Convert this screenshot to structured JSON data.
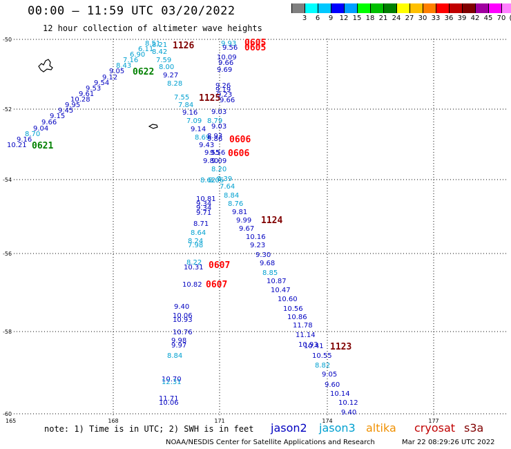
{
  "title": "00:00 – 11:59 UTC 03/20/2022",
  "subtitle": "12 hour collection of altimeter wave heights",
  "legend": {
    "colors": [
      "#808080",
      "#00ffff",
      "#00c8ff",
      "#0000ff",
      "#00a0ff",
      "#00ff00",
      "#00c000",
      "#008000",
      "#ffff00",
      "#ffc000",
      "#ff8000",
      "#ff0000",
      "#c00000",
      "#800000",
      "#a000a0",
      "#ff00ff",
      "#ff80ff",
      "#000000"
    ],
    "labels": [
      "3",
      "6",
      "9",
      "12",
      "15",
      "18",
      "21",
      "24",
      "27",
      "30",
      "33",
      "36",
      "39",
      "42",
      "45",
      "70",
      "(ft)"
    ]
  },
  "axes": {
    "lon_ticks": [
      "165",
      "168",
      "171",
      "174",
      "177"
    ],
    "lat_ticks": [
      "-50",
      "-52",
      "-54",
      "-56",
      "-58",
      "-60"
    ]
  },
  "colors": {
    "jason2": "#0000c0",
    "jason3": "#00a0d0",
    "altika": "#f09000",
    "cryosat": "#c00000",
    "s3a": "#800000",
    "green_time": "#008000",
    "red_time": "#ff0000",
    "dark_red_time": "#800000"
  },
  "measurements": [
    {
      "text": "10.21",
      "c": "jason2"
    },
    {
      "text": "9.16",
      "c": "jason2"
    },
    {
      "text": "8.70",
      "c": "jason3"
    },
    {
      "text": "9.04",
      "c": "jason2"
    },
    {
      "text": "9.66",
      "c": "jason2"
    },
    {
      "text": "9.15",
      "c": "jason2"
    },
    {
      "text": "9.45",
      "c": "jason2"
    },
    {
      "text": "9.95",
      "c": "jason2"
    },
    {
      "text": "10.28",
      "c": "jason2"
    },
    {
      "text": "9.61",
      "c": "jason2"
    },
    {
      "text": "9.53",
      "c": "jason2"
    },
    {
      "text": "9.54",
      "c": "jason2"
    },
    {
      "text": "9.12",
      "c": "jason2"
    },
    {
      "text": "9.05",
      "c": "jason2"
    },
    {
      "text": "8.43",
      "c": "jason3"
    },
    {
      "text": "7.16",
      "c": "jason3"
    },
    {
      "text": "6.90",
      "c": "jason3"
    },
    {
      "text": "6.11",
      "c": "jason3"
    },
    {
      "text": "8.51",
      "c": "jason3"
    },
    {
      "text": "8.21",
      "c": "jason3"
    },
    {
      "text": "8.42",
      "c": "jason3"
    },
    {
      "text": "7.59",
      "c": "jason3"
    },
    {
      "text": "8.00",
      "c": "jason3"
    },
    {
      "text": "9.27",
      "c": "jason2"
    },
    {
      "text": "8.28",
      "c": "jason3"
    },
    {
      "text": "7.55",
      "c": "jason3"
    },
    {
      "text": "7.84",
      "c": "jason3"
    },
    {
      "text": "9.16",
      "c": "jason2"
    },
    {
      "text": "7.09",
      "c": "jason3"
    },
    {
      "text": "9.14",
      "c": "jason2"
    },
    {
      "text": "8.69",
      "c": "jason3"
    },
    {
      "text": "9.43",
      "c": "jason2"
    },
    {
      "text": "9.86",
      "c": "jason2"
    },
    {
      "text": "9.55",
      "c": "jason2"
    },
    {
      "text": "9.56",
      "c": "jason2"
    },
    {
      "text": "9.80",
      "c": "jason2"
    },
    {
      "text": "9.09",
      "c": "jason2"
    },
    {
      "text": "8.20",
      "c": "jason3"
    },
    {
      "text": "8.39",
      "c": "jason3"
    },
    {
      "text": "8.06",
      "c": "jason3"
    },
    {
      "text": "8.62",
      "c": "jason3"
    },
    {
      "text": "9.93",
      "c": "jason3"
    },
    {
      "text": "9.56",
      "c": "jason2"
    },
    {
      "text": "10.09",
      "c": "jason2"
    },
    {
      "text": "9.66",
      "c": "jason2"
    },
    {
      "text": "9.69",
      "c": "jason2"
    },
    {
      "text": "9.26",
      "c": "jason2"
    },
    {
      "text": "9.19",
      "c": "jason2"
    },
    {
      "text": "9.23",
      "c": "jason2"
    },
    {
      "text": "9.66",
      "c": "jason2"
    },
    {
      "text": "9.03",
      "c": "jason2"
    },
    {
      "text": "8.79",
      "c": "jason3"
    },
    {
      "text": "9.03",
      "c": "jason2"
    },
    {
      "text": "8.93",
      "c": "jason2"
    },
    {
      "text": "7.64",
      "c": "jason3"
    },
    {
      "text": "8.84",
      "c": "jason3"
    },
    {
      "text": "8.76",
      "c": "jason3"
    },
    {
      "text": "9.81",
      "c": "jason2"
    },
    {
      "text": "9.99",
      "c": "jason2"
    },
    {
      "text": "9.67",
      "c": "jason2"
    },
    {
      "text": "10.16",
      "c": "jason2"
    },
    {
      "text": "9.23",
      "c": "jason2"
    },
    {
      "text": "9.30",
      "c": "jason2"
    },
    {
      "text": "9.68",
      "c": "jason2"
    },
    {
      "text": "8.85",
      "c": "jason3"
    },
    {
      "text": "10.87",
      "c": "jason2"
    },
    {
      "text": "10.47",
      "c": "jason2"
    },
    {
      "text": "10.60",
      "c": "jason2"
    },
    {
      "text": "10.56",
      "c": "jason2"
    },
    {
      "text": "10.86",
      "c": "jason2"
    },
    {
      "text": "11.78",
      "c": "jason2"
    },
    {
      "text": "11.14",
      "c": "jason2"
    },
    {
      "text": "10.93",
      "c": "jason2"
    },
    {
      "text": "10.41",
      "c": "jason2"
    },
    {
      "text": "10.55",
      "c": "jason2"
    },
    {
      "text": "8.82",
      "c": "jason3"
    },
    {
      "text": "9.05",
      "c": "jason2"
    },
    {
      "text": "9.60",
      "c": "jason2"
    },
    {
      "text": "10.14",
      "c": "jason2"
    },
    {
      "text": "10.12",
      "c": "jason2"
    },
    {
      "text": "9.40",
      "c": "jason2"
    },
    {
      "text": "10.81",
      "c": "jason2"
    },
    {
      "text": "9.34",
      "c": "jason2"
    },
    {
      "text": "9.34",
      "c": "jason2"
    },
    {
      "text": "9.71",
      "c": "jason2"
    },
    {
      "text": "8.71",
      "c": "jason2"
    },
    {
      "text": "8.64",
      "c": "jason3"
    },
    {
      "text": "8.24",
      "c": "jason3"
    },
    {
      "text": "7.98",
      "c": "jason3"
    },
    {
      "text": "8.22",
      "c": "jason3"
    },
    {
      "text": "10.31",
      "c": "jason2"
    },
    {
      "text": "10.82",
      "c": "jason2"
    },
    {
      "text": "9.40",
      "c": "jason2"
    },
    {
      "text": "10.06",
      "c": "jason2"
    },
    {
      "text": "10.93",
      "c": "jason2"
    },
    {
      "text": "10.76",
      "c": "jason2"
    },
    {
      "text": "9.98",
      "c": "jason2"
    },
    {
      "text": "9.97",
      "c": "jason2"
    },
    {
      "text": "8.84",
      "c": "jason3"
    },
    {
      "text": "10.70",
      "c": "jason2"
    },
    {
      "text": "12.31",
      "c": "jason3"
    },
    {
      "text": "11.71",
      "c": "jason2"
    },
    {
      "text": "10.06",
      "c": "jason2"
    },
    {
      "text": "10.22",
      "c": "jason2"
    },
    {
      "text": "10.22",
      "c": "jason2"
    }
  ],
  "time_labels": [
    {
      "text": "0621",
      "c": "green_time"
    },
    {
      "text": "0622",
      "c": "green_time"
    },
    {
      "text": "1126",
      "c": "dark_red_time"
    },
    {
      "text": "0605",
      "c": "red_time"
    },
    {
      "text": "0605",
      "c": "red_time"
    },
    {
      "text": "1125",
      "c": "dark_red_time"
    },
    {
      "text": "0606",
      "c": "red_time"
    },
    {
      "text": "0606",
      "c": "red_time"
    },
    {
      "text": "1124",
      "c": "dark_red_time"
    },
    {
      "text": "0607",
      "c": "red_time"
    },
    {
      "text": "0607",
      "c": "red_time"
    },
    {
      "text": "1123",
      "c": "dark_red_time"
    }
  ],
  "footer": {
    "note": "note: 1) Time is in UTC; 2) SWH is in feet",
    "satellites": [
      "jason2",
      "jason3",
      "altika",
      "cryosat",
      "s3a"
    ],
    "credit": "NOAA/NESDIS Center for Satellite Applications and Research",
    "stamp": "Mar 22 08:29:26 UTC 2022"
  }
}
